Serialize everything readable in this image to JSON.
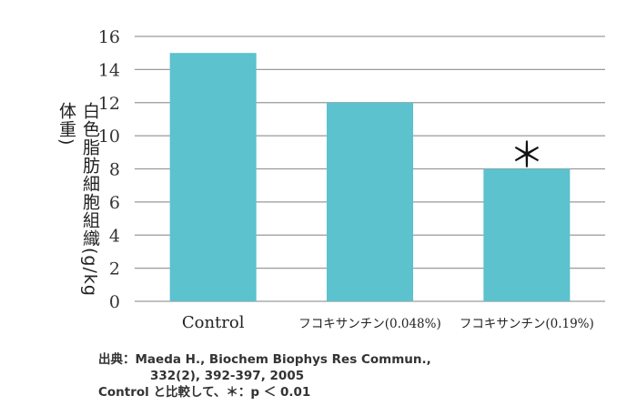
{
  "chart_data": {
    "type": "bar",
    "categories": [
      "Control",
      "フコキサンチン(0.048%)",
      "フコキサンチン(0.19%)"
    ],
    "values": [
      15,
      12,
      8
    ],
    "ylabel": "白色脂肪細胞組織(g/kg体重)",
    "xlabel": "",
    "ylim": [
      0,
      16
    ],
    "yticks": [
      0,
      2,
      4,
      6,
      8,
      10,
      12,
      14,
      16
    ],
    "annotations": [
      {
        "category_index": 2,
        "text": "＊"
      }
    ],
    "grid": true,
    "bar_color": "#5bc2ce"
  },
  "notes": {
    "source_line1": "出典：Maeda H., Biochem Biophys Res Commun.,",
    "source_line2": "332(2), 392-397, 2005",
    "significance": "Control と比較して、＊：p ＜ 0.01"
  }
}
